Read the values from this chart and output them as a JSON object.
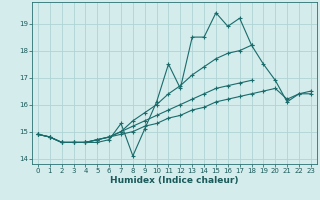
{
  "title": "",
  "xlabel": "Humidex (Indice chaleur)",
  "background_color": "#d4ecec",
  "grid_color": "#afd4d4",
  "line_color": "#1a6b6b",
  "xlim": [
    -0.5,
    23.5
  ],
  "ylim": [
    13.8,
    19.8
  ],
  "yticks": [
    14,
    15,
    16,
    17,
    18,
    19
  ],
  "xticks": [
    0,
    1,
    2,
    3,
    4,
    5,
    6,
    7,
    8,
    9,
    10,
    11,
    12,
    13,
    14,
    15,
    16,
    17,
    18,
    19,
    20,
    21,
    22,
    23
  ],
  "series": [
    [
      14.9,
      14.8,
      14.6,
      14.6,
      14.6,
      14.6,
      14.7,
      15.3,
      14.1,
      15.1,
      16.1,
      17.5,
      16.6,
      18.5,
      18.5,
      19.4,
      18.9,
      19.2,
      18.2,
      17.5,
      16.9,
      16.1,
      16.4,
      16.4
    ],
    [
      14.9,
      14.8,
      14.6,
      14.6,
      14.6,
      14.7,
      14.8,
      15.0,
      15.4,
      15.7,
      16.0,
      16.4,
      16.7,
      17.1,
      17.4,
      17.7,
      17.9,
      18.0,
      18.2,
      null,
      null,
      null,
      null,
      null
    ],
    [
      14.9,
      14.8,
      14.6,
      14.6,
      14.6,
      14.7,
      14.8,
      15.0,
      15.2,
      15.4,
      15.6,
      15.8,
      16.0,
      16.2,
      16.4,
      16.6,
      16.7,
      16.8,
      16.9,
      null,
      null,
      null,
      null,
      null
    ],
    [
      14.9,
      14.8,
      14.6,
      14.6,
      14.6,
      14.7,
      14.8,
      14.9,
      15.0,
      15.2,
      15.3,
      15.5,
      15.6,
      15.8,
      15.9,
      16.1,
      16.2,
      16.3,
      16.4,
      16.5,
      16.6,
      16.2,
      16.4,
      16.5
    ]
  ]
}
